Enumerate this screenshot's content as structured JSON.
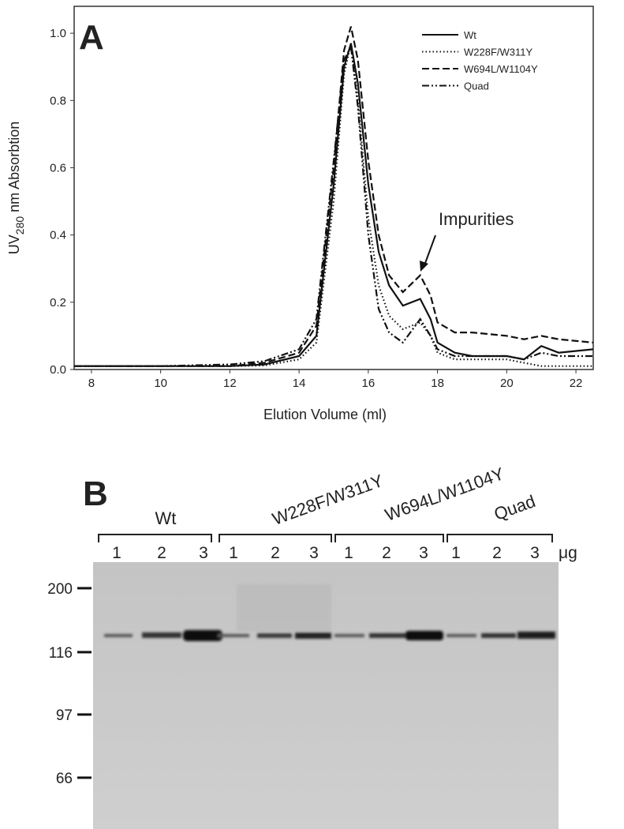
{
  "chart_data": {
    "type": "line",
    "panel": "A",
    "ylabel_parts": [
      "UV",
      "280",
      "nm Absorbtion"
    ],
    "xlabel": "Elution Volume (ml)",
    "annotation": "Impurities",
    "x": [
      7.5,
      8,
      10,
      12,
      13,
      14,
      14.5,
      15,
      15.3,
      15.5,
      15.7,
      16,
      16.3,
      16.6,
      17,
      17.5,
      17.8,
      18,
      18.5,
      19,
      20,
      20.5,
      21,
      21.5,
      22.5
    ],
    "series": [
      {
        "name": "Wt",
        "color": "#111111",
        "dash": "none",
        "values": [
          0.01,
          0.01,
          0.01,
          0.01,
          0.015,
          0.04,
          0.1,
          0.55,
          0.9,
          0.97,
          0.85,
          0.55,
          0.35,
          0.25,
          0.19,
          0.21,
          0.15,
          0.08,
          0.05,
          0.04,
          0.04,
          0.03,
          0.07,
          0.05,
          0.06
        ]
      },
      {
        "name": "W228F/W311Y",
        "color": "#111111",
        "dash": "1.5,3",
        "values": [
          0.01,
          0.01,
          0.01,
          0.01,
          0.012,
          0.03,
          0.08,
          0.5,
          0.88,
          0.97,
          0.8,
          0.45,
          0.25,
          0.16,
          0.12,
          0.14,
          0.1,
          0.05,
          0.03,
          0.03,
          0.03,
          0.02,
          0.01,
          0.01,
          0.01
        ]
      },
      {
        "name": "W694L/W1104Y",
        "color": "#111111",
        "dash": "9,4",
        "values": [
          0.01,
          0.01,
          0.01,
          0.01,
          0.02,
          0.05,
          0.13,
          0.6,
          0.95,
          1.02,
          0.92,
          0.62,
          0.4,
          0.28,
          0.23,
          0.28,
          0.22,
          0.14,
          0.11,
          0.11,
          0.1,
          0.09,
          0.1,
          0.09,
          0.08
        ]
      },
      {
        "name": "Quad",
        "color": "#111111",
        "dash": "9,3,2,3,2,3",
        "values": [
          0.01,
          0.01,
          0.01,
          0.015,
          0.025,
          0.06,
          0.15,
          0.62,
          0.92,
          0.96,
          0.78,
          0.4,
          0.18,
          0.11,
          0.08,
          0.15,
          0.1,
          0.06,
          0.04,
          0.04,
          0.04,
          0.03,
          0.05,
          0.04,
          0.04
        ]
      }
    ],
    "xlim": [
      7.5,
      22.5
    ],
    "xticks": [
      8,
      10,
      12,
      14,
      16,
      18,
      20,
      22
    ],
    "ylim": [
      0,
      1.08
    ],
    "yticks": [
      {
        "value": 0,
        "label": "0.0"
      },
      0.2,
      0.4,
      0.6,
      0.8,
      {
        "value": 1,
        "label": "1.0"
      }
    ],
    "grid": false,
    "legend": "upper right"
  },
  "gel": {
    "panel": "B",
    "groups": [
      {
        "label": "Wt",
        "lanes": [
          "1",
          "2",
          "3"
        ]
      },
      {
        "label": "W228F/W311Y",
        "lanes": [
          "1",
          "2",
          "3"
        ]
      },
      {
        "label": "W694L/W1104Y",
        "lanes": [
          "1",
          "2",
          "3"
        ]
      },
      {
        "label": "Quad",
        "lanes": [
          "1",
          "2",
          "3"
        ]
      }
    ],
    "unit": "μg",
    "markers": [
      "200",
      "116",
      "97",
      "66"
    ]
  }
}
